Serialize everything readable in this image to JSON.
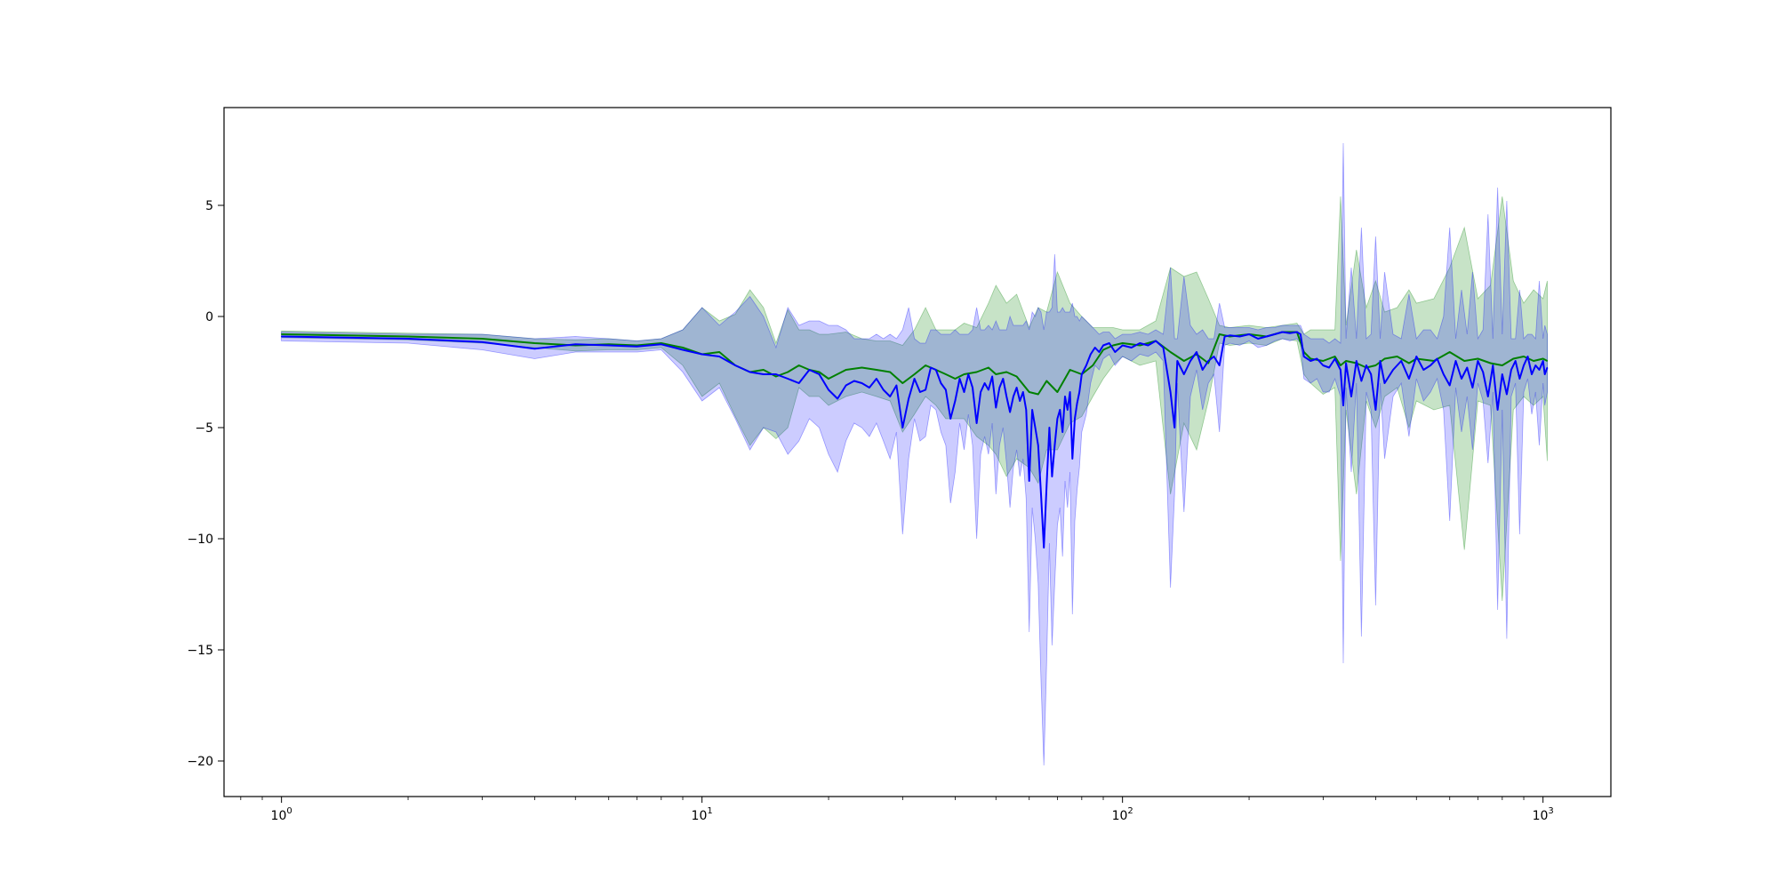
{
  "chart_data": {
    "type": "line",
    "title": "",
    "xlabel": "",
    "ylabel": "",
    "xscale": "log",
    "xlim": [
      0.73,
      1450
    ],
    "ylim": [
      -21.6,
      9.4
    ],
    "grid": false,
    "legend": "none",
    "x_ticks": [
      {
        "base": "10",
        "exp": "0",
        "value": 1
      },
      {
        "base": "10",
        "exp": "1",
        "value": 10
      },
      {
        "base": "10",
        "exp": "2",
        "value": 100
      },
      {
        "base": "10",
        "exp": "3",
        "value": 1000
      }
    ],
    "y_ticks": [
      {
        "label": "5",
        "value": 5
      },
      {
        "label": "0",
        "value": 0
      },
      {
        "label": "−5",
        "value": -5
      },
      {
        "label": "−10",
        "value": -10
      },
      {
        "label": "−15",
        "value": -15
      },
      {
        "label": "−20",
        "value": -20
      }
    ],
    "series": [
      {
        "color": "#008000",
        "band_color": "#008000",
        "band_opacity": 0.22,
        "x": [
          1,
          2,
          3,
          4,
          5,
          6,
          7,
          8,
          9,
          10,
          11,
          12,
          13,
          14,
          15,
          16,
          17,
          18,
          19,
          20,
          22,
          24,
          26,
          28,
          30,
          32,
          34,
          36,
          38,
          40,
          42,
          45,
          48,
          50,
          53,
          56,
          60,
          63,
          66,
          70,
          75,
          80,
          85,
          90,
          95,
          100,
          110,
          120,
          130,
          140,
          150,
          160,
          170,
          180,
          200,
          220,
          240,
          260,
          270,
          280,
          300,
          320,
          330,
          340,
          360,
          380,
          400,
          420,
          450,
          480,
          500,
          550,
          600,
          650,
          700,
          750,
          800,
          850,
          900,
          950,
          1000,
          1024
        ],
        "y": [
          -0.8,
          -0.9,
          -1.0,
          -1.2,
          -1.3,
          -1.25,
          -1.3,
          -1.2,
          -1.4,
          -1.7,
          -1.6,
          -2.2,
          -2.5,
          -2.4,
          -2.7,
          -2.5,
          -2.2,
          -2.4,
          -2.5,
          -2.8,
          -2.4,
          -2.3,
          -2.4,
          -2.5,
          -3.0,
          -2.6,
          -2.2,
          -2.4,
          -2.6,
          -2.8,
          -2.6,
          -2.5,
          -2.3,
          -2.6,
          -2.5,
          -2.7,
          -3.4,
          -3.5,
          -2.9,
          -3.4,
          -2.4,
          -2.6,
          -2.2,
          -1.5,
          -1.3,
          -1.2,
          -1.3,
          -1.1,
          -1.6,
          -2.0,
          -1.7,
          -2.1,
          -0.8,
          -0.9,
          -0.8,
          -0.9,
          -0.7,
          -0.7,
          -1.6,
          -1.9,
          -2.0,
          -1.8,
          -2.2,
          -2.0,
          -2.1,
          -2.3,
          -2.2,
          -1.9,
          -1.8,
          -2.1,
          -1.9,
          -2.0,
          -1.6,
          -2.0,
          -1.9,
          -2.1,
          -2.2,
          -1.9,
          -1.8,
          -2.0,
          -1.9,
          -2.0
        ],
        "lower": [
          -0.95,
          -1.05,
          -1.2,
          -1.4,
          -1.55,
          -1.5,
          -1.5,
          -1.4,
          -2.2,
          -3.6,
          -3.0,
          -4.5,
          -5.8,
          -5.0,
          -5.5,
          -5.0,
          -3.2,
          -3.6,
          -3.6,
          -4.0,
          -3.6,
          -3.4,
          -3.6,
          -3.8,
          -5.2,
          -4.4,
          -3.6,
          -4.0,
          -4.6,
          -4.6,
          -4.6,
          -5.4,
          -5.8,
          -6.2,
          -7.2,
          -6.4,
          -6.8,
          -7.5,
          -6.0,
          -6.0,
          -4.8,
          -4.5,
          -3.6,
          -2.8,
          -2.2,
          -1.8,
          -2.2,
          -2.0,
          -8.0,
          -4.8,
          -6.0,
          -3.8,
          -1.2,
          -1.3,
          -1.2,
          -1.3,
          -1.0,
          -1.1,
          -2.6,
          -3.0,
          -3.5,
          -3.2,
          -11.0,
          -4.2,
          -8.0,
          -3.8,
          -5.0,
          -3.6,
          -3.2,
          -5.0,
          -3.8,
          -4.2,
          -4.0,
          -10.5,
          -3.8,
          -4.0,
          -12.8,
          -4.2,
          -3.6,
          -4.0,
          -3.6,
          -6.5
        ],
        "upper": [
          -0.65,
          -0.75,
          -0.8,
          -1.0,
          -1.05,
          -1.0,
          -1.1,
          -1.0,
          -0.6,
          0.4,
          -0.2,
          0.1,
          1.2,
          0.4,
          -1.2,
          0.3,
          -0.6,
          -0.6,
          -0.8,
          -0.8,
          -0.7,
          -1.0,
          -1.1,
          -1.1,
          -1.3,
          -0.6,
          0.4,
          -0.6,
          -0.6,
          -0.6,
          -0.3,
          -0.5,
          0.6,
          1.4,
          0.6,
          1.0,
          -0.5,
          0.4,
          0.2,
          2.0,
          0.6,
          0.0,
          -0.5,
          -0.5,
          -0.5,
          -0.6,
          -0.6,
          -0.2,
          2.2,
          1.8,
          2.0,
          0.8,
          -0.4,
          -0.5,
          -0.4,
          -0.5,
          -0.4,
          -0.3,
          -0.8,
          -0.6,
          -0.6,
          -0.6,
          5.4,
          -0.4,
          3.0,
          0.4,
          1.6,
          0.2,
          0.4,
          1.2,
          0.6,
          0.8,
          2.2,
          4.0,
          0.8,
          1.4,
          5.4,
          1.6,
          0.6,
          1.2,
          0.8,
          1.6
        ]
      },
      {
        "color": "#0000ff",
        "band_color": "#0000ff",
        "band_opacity": 0.2,
        "x": [
          1,
          2,
          3,
          4,
          5,
          6,
          7,
          8,
          9,
          10,
          11,
          12,
          13,
          14,
          15,
          16,
          17,
          18,
          19,
          20,
          21,
          22,
          23,
          24,
          25,
          26,
          27,
          28,
          29,
          30,
          31,
          32,
          33,
          34,
          35,
          36,
          37,
          38,
          39,
          40,
          41,
          42,
          43,
          44,
          45,
          46,
          47,
          48,
          49,
          50,
          51,
          52,
          53,
          54,
          55,
          56,
          57,
          58,
          59,
          60,
          61,
          62,
          63,
          64,
          65,
          66,
          67,
          68,
          69,
          70,
          71,
          72,
          73,
          74,
          75,
          76,
          77,
          78,
          79,
          80,
          82,
          84,
          86,
          88,
          90,
          93,
          96,
          100,
          105,
          110,
          115,
          120,
          125,
          130,
          133,
          135,
          140,
          145,
          150,
          155,
          160,
          165,
          170,
          175,
          180,
          190,
          200,
          210,
          220,
          230,
          240,
          250,
          260,
          265,
          270,
          280,
          290,
          300,
          310,
          320,
          330,
          335,
          340,
          350,
          360,
          370,
          380,
          390,
          400,
          410,
          420,
          440,
          460,
          480,
          500,
          520,
          540,
          560,
          580,
          600,
          620,
          640,
          660,
          680,
          700,
          720,
          740,
          760,
          780,
          800,
          820,
          840,
          860,
          880,
          900,
          920,
          940,
          960,
          980,
          1000,
          1010,
          1024
        ],
        "y": [
          -0.9,
          -1.0,
          -1.15,
          -1.45,
          -1.25,
          -1.3,
          -1.35,
          -1.25,
          -1.5,
          -1.7,
          -1.8,
          -2.2,
          -2.5,
          -2.6,
          -2.6,
          -2.8,
          -3.0,
          -2.4,
          -2.6,
          -3.3,
          -3.7,
          -3.1,
          -2.9,
          -3.0,
          -3.2,
          -2.8,
          -3.3,
          -3.6,
          -3.1,
          -5.0,
          -3.7,
          -2.8,
          -3.4,
          -3.3,
          -2.3,
          -2.4,
          -3.0,
          -3.3,
          -4.6,
          -3.8,
          -2.8,
          -3.4,
          -2.6,
          -3.2,
          -4.8,
          -3.4,
          -3.0,
          -3.3,
          -2.7,
          -4.1,
          -3.2,
          -2.8,
          -3.6,
          -4.3,
          -3.6,
          -3.2,
          -3.8,
          -3.4,
          -4.2,
          -7.4,
          -4.2,
          -5.0,
          -5.8,
          -8.0,
          -10.4,
          -7.6,
          -5.0,
          -7.2,
          -5.8,
          -4.6,
          -4.2,
          -5.2,
          -3.6,
          -4.2,
          -3.4,
          -6.4,
          -4.6,
          -3.9,
          -3.4,
          -2.6,
          -2.2,
          -1.7,
          -1.4,
          -1.6,
          -1.3,
          -1.2,
          -1.6,
          -1.3,
          -1.4,
          -1.2,
          -1.3,
          -1.1,
          -1.4,
          -3.4,
          -5.0,
          -2.0,
          -2.6,
          -2.0,
          -1.6,
          -2.4,
          -2.0,
          -1.8,
          -2.2,
          -0.9,
          -0.85,
          -0.9,
          -0.8,
          -1.0,
          -0.9,
          -0.8,
          -0.7,
          -0.75,
          -0.7,
          -0.8,
          -1.8,
          -2.0,
          -1.9,
          -2.2,
          -2.3,
          -1.9,
          -2.4,
          -4.0,
          -2.1,
          -3.6,
          -2.0,
          -2.9,
          -2.2,
          -2.6,
          -4.2,
          -2.0,
          -3.0,
          -2.4,
          -2.0,
          -2.8,
          -1.8,
          -2.4,
          -2.2,
          -1.9,
          -2.6,
          -3.1,
          -2.0,
          -2.8,
          -2.3,
          -3.2,
          -2.0,
          -2.5,
          -3.6,
          -2.2,
          -4.2,
          -2.6,
          -3.5,
          -2.4,
          -2.0,
          -2.8,
          -2.2,
          -1.8,
          -2.6,
          -2.2,
          -2.4,
          -2.0,
          -2.6,
          -2.3
        ],
        "lower": [
          -1.1,
          -1.2,
          -1.5,
          -1.9,
          -1.6,
          -1.6,
          -1.6,
          -1.5,
          -2.5,
          -3.8,
          -3.2,
          -4.6,
          -6.0,
          -5.0,
          -5.2,
          -6.2,
          -5.6,
          -4.6,
          -5.0,
          -6.2,
          -7.0,
          -5.6,
          -4.8,
          -5.0,
          -5.4,
          -4.8,
          -5.6,
          -6.4,
          -5.2,
          -9.8,
          -6.4,
          -4.6,
          -5.6,
          -5.4,
          -4.0,
          -4.2,
          -5.2,
          -5.8,
          -8.4,
          -7.0,
          -4.8,
          -6.0,
          -4.4,
          -5.8,
          -10.0,
          -6.2,
          -5.4,
          -6.2,
          -4.8,
          -8.0,
          -5.8,
          -5.0,
          -6.6,
          -8.6,
          -6.8,
          -6.0,
          -7.2,
          -6.4,
          -8.2,
          -14.2,
          -8.6,
          -10.0,
          -12.0,
          -16.4,
          -20.2,
          -15.6,
          -10.2,
          -14.8,
          -12.0,
          -9.4,
          -8.6,
          -10.8,
          -7.4,
          -8.6,
          -7.0,
          -13.4,
          -9.2,
          -7.8,
          -6.8,
          -5.2,
          -4.4,
          -3.0,
          -2.2,
          -2.4,
          -1.9,
          -1.7,
          -2.2,
          -1.8,
          -2.0,
          -1.7,
          -1.8,
          -1.6,
          -2.0,
          -12.2,
          -8.0,
          -3.0,
          -8.8,
          -3.6,
          -2.4,
          -4.2,
          -3.0,
          -2.6,
          -5.2,
          -1.3,
          -1.2,
          -1.3,
          -1.1,
          -1.4,
          -1.3,
          -1.1,
          -1.0,
          -1.1,
          -1.0,
          -1.2,
          -2.8,
          -3.0,
          -2.8,
          -3.4,
          -3.4,
          -2.8,
          -3.6,
          -15.6,
          -3.2,
          -7.0,
          -3.0,
          -14.4,
          -3.4,
          -4.2,
          -13.0,
          -3.0,
          -6.4,
          -3.6,
          -3.0,
          -5.4,
          -2.8,
          -3.8,
          -3.4,
          -2.8,
          -4.2,
          -9.2,
          -3.2,
          -5.2,
          -3.6,
          -6.0,
          -3.0,
          -3.8,
          -6.6,
          -3.4,
          -13.2,
          -4.2,
          -14.5,
          -3.6,
          -3.0,
          -9.8,
          -3.4,
          -2.8,
          -4.4,
          -3.4,
          -5.8,
          -3.0,
          -4.0,
          -3.4
        ],
        "upper": [
          -0.7,
          -0.8,
          -0.8,
          -1.0,
          -0.9,
          -1.0,
          -1.1,
          -1.0,
          -0.6,
          0.4,
          -0.4,
          0.2,
          0.9,
          0.0,
          -1.4,
          0.4,
          -0.4,
          -0.2,
          -0.2,
          -0.4,
          -0.4,
          -0.6,
          -1.0,
          -1.0,
          -1.0,
          -0.8,
          -1.0,
          -0.8,
          -1.0,
          -0.6,
          0.4,
          -1.0,
          -1.2,
          -1.2,
          -0.6,
          -0.6,
          -0.8,
          -0.8,
          -0.8,
          -0.6,
          -0.8,
          -0.8,
          -0.8,
          -0.6,
          0.4,
          -0.6,
          -0.6,
          -0.4,
          -0.6,
          -0.2,
          -0.6,
          -0.6,
          -0.6,
          0.0,
          -0.4,
          -0.4,
          -0.4,
          -0.4,
          -0.2,
          -0.6,
          0.2,
          0.0,
          0.4,
          0.2,
          -0.6,
          0.2,
          0.2,
          0.4,
          2.8,
          0.2,
          0.2,
          0.4,
          0.2,
          0.2,
          0.2,
          0.6,
          0.0,
          0.0,
          -0.2,
          0.0,
          -0.2,
          -0.4,
          -0.6,
          -0.8,
          -0.7,
          -0.7,
          -1.0,
          -0.8,
          -0.8,
          -0.7,
          -0.8,
          -0.6,
          -0.8,
          2.2,
          -1.0,
          -1.0,
          1.8,
          -0.4,
          -0.8,
          -0.6,
          -1.0,
          -1.0,
          0.6,
          -0.5,
          -0.5,
          -0.5,
          -0.5,
          -0.6,
          -0.5,
          -0.5,
          -0.4,
          -0.4,
          -0.4,
          -0.4,
          -0.8,
          -1.0,
          -1.0,
          -1.0,
          -1.2,
          -1.0,
          -1.2,
          7.8,
          -1.0,
          2.2,
          -1.0,
          4.0,
          -1.0,
          -0.8,
          3.6,
          -1.0,
          2.0,
          -0.8,
          -1.0,
          1.0,
          -1.0,
          -0.6,
          -0.6,
          -1.0,
          0.0,
          4.0,
          -1.0,
          1.2,
          -0.8,
          2.0,
          -1.0,
          -0.6,
          4.6,
          -1.0,
          5.8,
          -0.8,
          5.2,
          -1.0,
          -1.0,
          1.2,
          -1.0,
          -0.8,
          -0.8,
          -1.0,
          1.6,
          -1.0,
          -0.4,
          -0.8
        ]
      }
    ]
  }
}
